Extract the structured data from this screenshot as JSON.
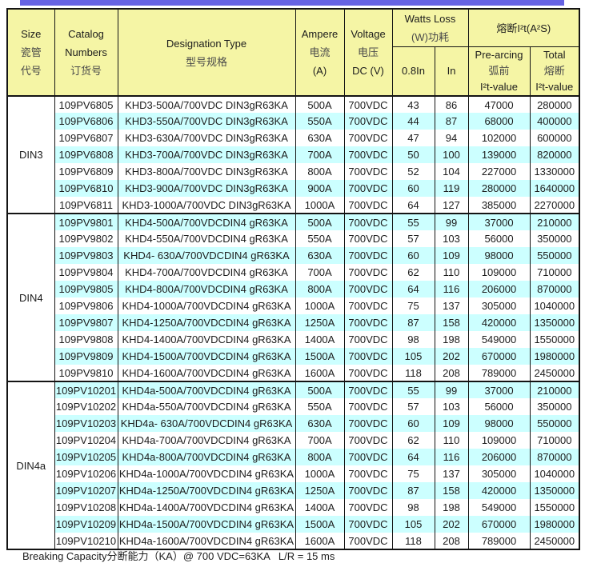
{
  "colors": {
    "accent_bar": "#6663E3",
    "header_bg": "#F5F5A5",
    "stripe_cyan": "#CCFFFF",
    "border": "#141414"
  },
  "header": {
    "size": {
      "en": "Size",
      "zh1": "瓷管",
      "zh2": "代号"
    },
    "catalog": {
      "en1": "Catalog",
      "en2": "Numbers",
      "zh": "订货号"
    },
    "designation": {
      "en": "Designation Type",
      "zh": "型号规格"
    },
    "ampere": {
      "en": "Ampere",
      "zh": "电流",
      "unit": "(A)"
    },
    "voltage": {
      "en": "Voltage",
      "zh": "电压",
      "unit": "DC (V)"
    },
    "watts_loss": {
      "en": "Watts Loss",
      "zh": "(W)功耗",
      "sub_0_8in": "0.8In",
      "sub_in": "In"
    },
    "i2t": {
      "title": "熔断I²t(A²S)",
      "prearcing": {
        "en": "Pre-arcing",
        "zh": "弧前",
        "val": "I²t-value"
      },
      "total": {
        "en": "Total",
        "zh": "熔断",
        "val": "I²t-value"
      }
    }
  },
  "groups": [
    {
      "size": "DIN3",
      "rows": [
        {
          "catalog": "109PV6805",
          "designation": "KHD3-500A/700VDC DIN3gR63KA",
          "ampere": "500A",
          "voltage": "700VDC",
          "watts_0_8in": "43",
          "watts_in": "86",
          "prearcing_i2t": "47000",
          "total_i2t": "280000"
        },
        {
          "catalog": "109PV6806",
          "designation": "KHD3-550A/700VDC DIN3gR63KA",
          "ampere": "550A",
          "voltage": "700VDC",
          "watts_0_8in": "44",
          "watts_in": "87",
          "prearcing_i2t": "68000",
          "total_i2t": "400000"
        },
        {
          "catalog": "109PV6807",
          "designation": "KHD3-630A/700VDC DIN3gR63KA",
          "ampere": "630A",
          "voltage": "700VDC",
          "watts_0_8in": "47",
          "watts_in": "94",
          "prearcing_i2t": "102000",
          "total_i2t": "600000"
        },
        {
          "catalog": "109PV6808",
          "designation": "KHD3-700A/700VDC DIN3gR63KA",
          "ampere": "700A",
          "voltage": "700VDC",
          "watts_0_8in": "50",
          "watts_in": "100",
          "prearcing_i2t": "139000",
          "total_i2t": "820000"
        },
        {
          "catalog": "109PV6809",
          "designation": "KHD3-800A/700VDC DIN3gR63KA",
          "ampere": "800A",
          "voltage": "700VDC",
          "watts_0_8in": "52",
          "watts_in": "104",
          "prearcing_i2t": "227000",
          "total_i2t": "1330000"
        },
        {
          "catalog": "109PV6810",
          "designation": "KHD3-900A/700VDC DIN3gR63KA",
          "ampere": "900A",
          "voltage": "700VDC",
          "watts_0_8in": "60",
          "watts_in": "119",
          "prearcing_i2t": "280000",
          "total_i2t": "1640000"
        },
        {
          "catalog": "109PV6811",
          "designation": "KHD3-1000A/700VDC DIN3gR63KA",
          "ampere": "1000A",
          "voltage": "700VDC",
          "watts_0_8in": "64",
          "watts_in": "127",
          "prearcing_i2t": "385000",
          "total_i2t": "2270000"
        }
      ]
    },
    {
      "size": "DIN4",
      "rows": [
        {
          "catalog": "109PV9801",
          "designation": "KHD4-500A/700VDCDIN4 gR63KA",
          "ampere": "500A",
          "voltage": "700VDC",
          "watts_0_8in": "55",
          "watts_in": "99",
          "prearcing_i2t": "37000",
          "total_i2t": "210000"
        },
        {
          "catalog": "109PV9802",
          "designation": "KHD4-550A/700VDCDIN4 gR63KA",
          "ampere": "550A",
          "voltage": "700VDC",
          "watts_0_8in": "57",
          "watts_in": "103",
          "prearcing_i2t": "56000",
          "total_i2t": "350000"
        },
        {
          "catalog": "109PV9803",
          "designation": "KHD4- 630A/700VDCDIN4 gR63KA",
          "ampere": "630A",
          "voltage": "700VDC",
          "watts_0_8in": "60",
          "watts_in": "109",
          "prearcing_i2t": "98000",
          "total_i2t": "550000"
        },
        {
          "catalog": "109PV9804",
          "designation": "KHD4-700A/700VDCDIN4 gR63KA",
          "ampere": "700A",
          "voltage": "700VDC",
          "watts_0_8in": "62",
          "watts_in": "110",
          "prearcing_i2t": "109000",
          "total_i2t": "710000"
        },
        {
          "catalog": "109PV9805",
          "designation": "KHD4-800A/700VDCDIN4 gR63KA",
          "ampere": "800A",
          "voltage": "700VDC",
          "watts_0_8in": "64",
          "watts_in": "116",
          "prearcing_i2t": "206000",
          "total_i2t": "870000"
        },
        {
          "catalog": "109PV9806",
          "designation": "KHD4-1000A/700VDCDIN4 gR63KA",
          "ampere": "1000A",
          "voltage": "700VDC",
          "watts_0_8in": "75",
          "watts_in": "137",
          "prearcing_i2t": "305000",
          "total_i2t": "1040000"
        },
        {
          "catalog": "109PV9807",
          "designation": "KHD4-1250A/700VDCDIN4 gR63KA",
          "ampere": "1250A",
          "voltage": "700VDC",
          "watts_0_8in": "87",
          "watts_in": "158",
          "prearcing_i2t": "420000",
          "total_i2t": "1350000"
        },
        {
          "catalog": "109PV9808",
          "designation": "KHD4-1400A/700VDCDIN4 gR63KA",
          "ampere": "1400A",
          "voltage": "700VDC",
          "watts_0_8in": "98",
          "watts_in": "198",
          "prearcing_i2t": "549000",
          "total_i2t": "1550000"
        },
        {
          "catalog": "109PV9809",
          "designation": "KHD4-1500A/700VDCDIN4 gR63KA",
          "ampere": "1500A",
          "voltage": "700VDC",
          "watts_0_8in": "105",
          "watts_in": "202",
          "prearcing_i2t": "670000",
          "total_i2t": "1980000"
        },
        {
          "catalog": "109PV9810",
          "designation": "KHD4-1600A/700VDCDIN4 gR63KA",
          "ampere": "1600A",
          "voltage": "700VDC",
          "watts_0_8in": "118",
          "watts_in": "208",
          "prearcing_i2t": "789000",
          "total_i2t": "2450000"
        }
      ]
    },
    {
      "size": "DIN4a",
      "rows": [
        {
          "catalog": "109PV10201",
          "designation": "KHD4a-500A/700VDCDIN4 gR63KA",
          "ampere": "500A",
          "voltage": "700VDC",
          "watts_0_8in": "55",
          "watts_in": "99",
          "prearcing_i2t": "37000",
          "total_i2t": "210000"
        },
        {
          "catalog": "109PV10202",
          "designation": "KHD4a-550A/700VDCDIN4 gR63KA",
          "ampere": "550A",
          "voltage": "700VDC",
          "watts_0_8in": "57",
          "watts_in": "103",
          "prearcing_i2t": "56000",
          "total_i2t": "350000"
        },
        {
          "catalog": "109PV10203",
          "designation": "KHD4a- 630A/700VDCDIN4 gR63KA",
          "ampere": "630A",
          "voltage": "700VDC",
          "watts_0_8in": "60",
          "watts_in": "109",
          "prearcing_i2t": "98000",
          "total_i2t": "550000"
        },
        {
          "catalog": "109PV10204",
          "designation": "KHD4a-700A/700VDCDIN4 gR63KA",
          "ampere": "700A",
          "voltage": "700VDC",
          "watts_0_8in": "62",
          "watts_in": "110",
          "prearcing_i2t": "109000",
          "total_i2t": "710000"
        },
        {
          "catalog": "109PV10205",
          "designation": "KHD4a-800A/700VDCDIN4 gR63KA",
          "ampere": "800A",
          "voltage": "700VDC",
          "watts_0_8in": "64",
          "watts_in": "116",
          "prearcing_i2t": "206000",
          "total_i2t": "870000"
        },
        {
          "catalog": "109PV10206",
          "designation": "KHD4a-1000A/700VDCDIN4 gR63KA",
          "ampere": "1000A",
          "voltage": "700VDC",
          "watts_0_8in": "75",
          "watts_in": "137",
          "prearcing_i2t": "305000",
          "total_i2t": "1040000"
        },
        {
          "catalog": "109PV10207",
          "designation": "KHD4a-1250A/700VDCDIN4 gR63KA",
          "ampere": "1250A",
          "voltage": "700VDC",
          "watts_0_8in": "87",
          "watts_in": "158",
          "prearcing_i2t": "420000",
          "total_i2t": "1350000"
        },
        {
          "catalog": "109PV10208",
          "designation": "KHD4a-1400A/700VDCDIN4 gR63KA",
          "ampere": "1400A",
          "voltage": "700VDC",
          "watts_0_8in": "98",
          "watts_in": "198",
          "prearcing_i2t": "549000",
          "total_i2t": "1550000"
        },
        {
          "catalog": "109PV10209",
          "designation": "KHD4a-1500A/700VDCDIN4 gR63KA",
          "ampere": "1500A",
          "voltage": "700VDC",
          "watts_0_8in": "105",
          "watts_in": "202",
          "prearcing_i2t": "670000",
          "total_i2t": "1980000"
        },
        {
          "catalog": "109PV10210",
          "designation": "KHD4a-1600A/700VDCDIN4 gR63KA",
          "ampere": "1600A",
          "voltage": "700VDC",
          "watts_0_8in": "118",
          "watts_in": "208",
          "prearcing_i2t": "789000",
          "total_i2t": "2450000"
        }
      ]
    }
  ],
  "footer": {
    "note": "Breaking Capacity分断能力（KA）@ 700 VDC=63KA   L/R = 15 ms"
  }
}
